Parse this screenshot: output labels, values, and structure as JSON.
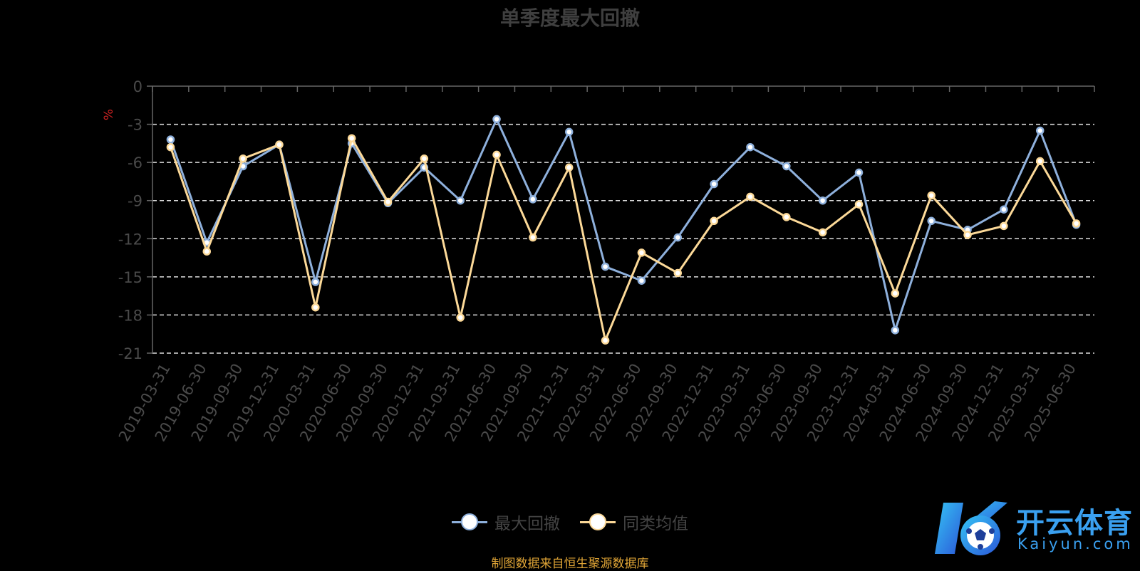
{
  "chart_data": {
    "type": "line",
    "title": "单季度最大回撤",
    "ylabel": "%",
    "xlabel": "",
    "ylim": [
      -21,
      0
    ],
    "yticks": [
      0,
      -3,
      -6,
      -9,
      -12,
      -15,
      -18,
      -21
    ],
    "grid": true,
    "legend_position": "bottom-center",
    "categories": [
      "2019-03-31",
      "2019-06-30",
      "2019-09-30",
      "2019-12-31",
      "2020-03-31",
      "2020-06-30",
      "2020-09-30",
      "2020-12-31",
      "2021-03-31",
      "2021-06-30",
      "2021-09-30",
      "2021-12-31",
      "2022-03-31",
      "2022-06-30",
      "2022-09-30",
      "2022-12-31",
      "2023-03-31",
      "2023-06-30",
      "2023-09-30",
      "2023-12-31",
      "2024-03-31",
      "2024-06-30",
      "2024-09-30",
      "2024-12-31",
      "2025-03-31",
      "2025-06-30"
    ],
    "series": [
      {
        "name": "最大回撤",
        "color": "#8eb0dc",
        "values": [
          -4.2,
          -12.3,
          -6.3,
          -4.6,
          -15.4,
          -4.5,
          -9.2,
          -6.4,
          -9.0,
          -2.6,
          -8.9,
          -3.6,
          -14.2,
          -15.3,
          -11.9,
          -7.7,
          -4.8,
          -6.3,
          -9.0,
          -6.8,
          -19.2,
          -10.6,
          -11.3,
          -9.7,
          -3.5,
          -10.9
        ]
      },
      {
        "name": "同类均值",
        "color": "#fcd998",
        "values": [
          -4.8,
          -13.0,
          -5.7,
          -4.6,
          -17.4,
          -4.1,
          -9.1,
          -5.7,
          -18.2,
          -5.4,
          -11.9,
          -6.4,
          -20.0,
          -13.1,
          -14.7,
          -10.6,
          -8.7,
          -10.3,
          -11.5,
          -9.3,
          -16.3,
          -8.6,
          -11.7,
          -11.0,
          -5.9,
          -10.8
        ]
      }
    ]
  },
  "legend": {
    "items": [
      "最大回撤",
      "同类均值"
    ]
  },
  "source": "制图数据来自恒生聚源数据库",
  "logo": {
    "name": "开云体育",
    "url": "Kaiyun.com"
  },
  "colors": {
    "axis": "#666666",
    "tick_label": "#4a4a4a",
    "grid": "#dddddd",
    "unit": "#cc2222",
    "source": "#e0a536"
  }
}
